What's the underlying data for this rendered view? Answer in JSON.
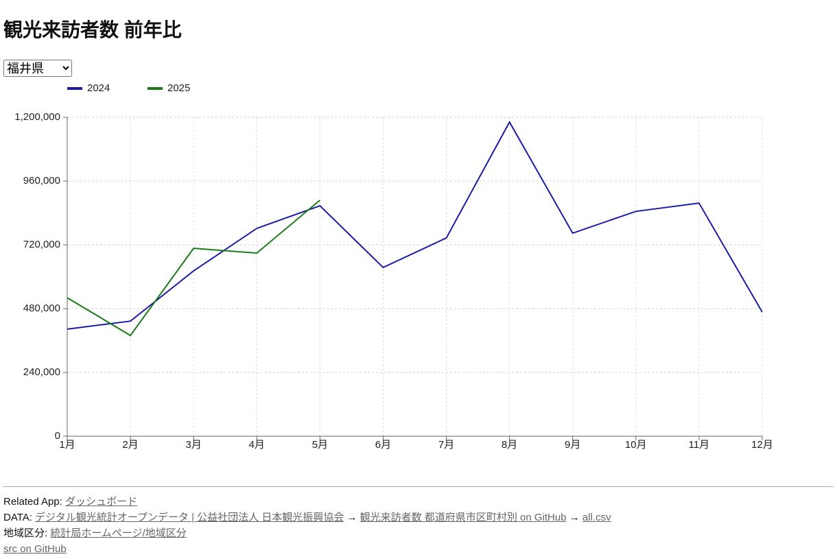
{
  "header": {
    "title": "観光来訪者数 前年比"
  },
  "selector": {
    "selected": "福井県"
  },
  "chart_data": {
    "type": "line",
    "categories": [
      "1月",
      "2月",
      "3月",
      "4月",
      "5月",
      "6月",
      "7月",
      "8月",
      "9月",
      "10月",
      "11月",
      "12月"
    ],
    "series": [
      {
        "name": "2024",
        "color": "#1a1aa6",
        "values": [
          403000,
          433000,
          622000,
          782000,
          867000,
          635000,
          746000,
          1182000,
          764000,
          846000,
          877000,
          467000
        ]
      },
      {
        "name": "2025",
        "color": "#1a7a1a",
        "values": [
          521000,
          379000,
          707000,
          689000,
          888000,
          null,
          null,
          null,
          null,
          null,
          null,
          null
        ]
      }
    ],
    "ylim": [
      0,
      1200000
    ],
    "yticks": [
      0,
      {
        "value": 240000,
        "label": "240,000"
      },
      {
        "value": 480000,
        "label": "480,000"
      },
      {
        "value": 720000,
        "label": "720,000"
      },
      {
        "value": 960000,
        "label": "960,000"
      },
      {
        "value": 1200000,
        "label": "1,200,000"
      }
    ],
    "grid": true,
    "legend": "top-left"
  },
  "footer": {
    "related": {
      "label": "Related App:",
      "link": "ダッシュボード"
    },
    "data": {
      "label": "DATA:",
      "arrow": "→",
      "links": [
        "デジタル観光統計オープンデータ | 公益社団法人 日本観光振興協会",
        "観光来訪者数 都道府県市区町村別 on GitHub",
        "all.csv"
      ]
    },
    "region": {
      "label": "地域区分:",
      "link": "統計局ホームページ/地域区分"
    },
    "src": "src on GitHub"
  }
}
